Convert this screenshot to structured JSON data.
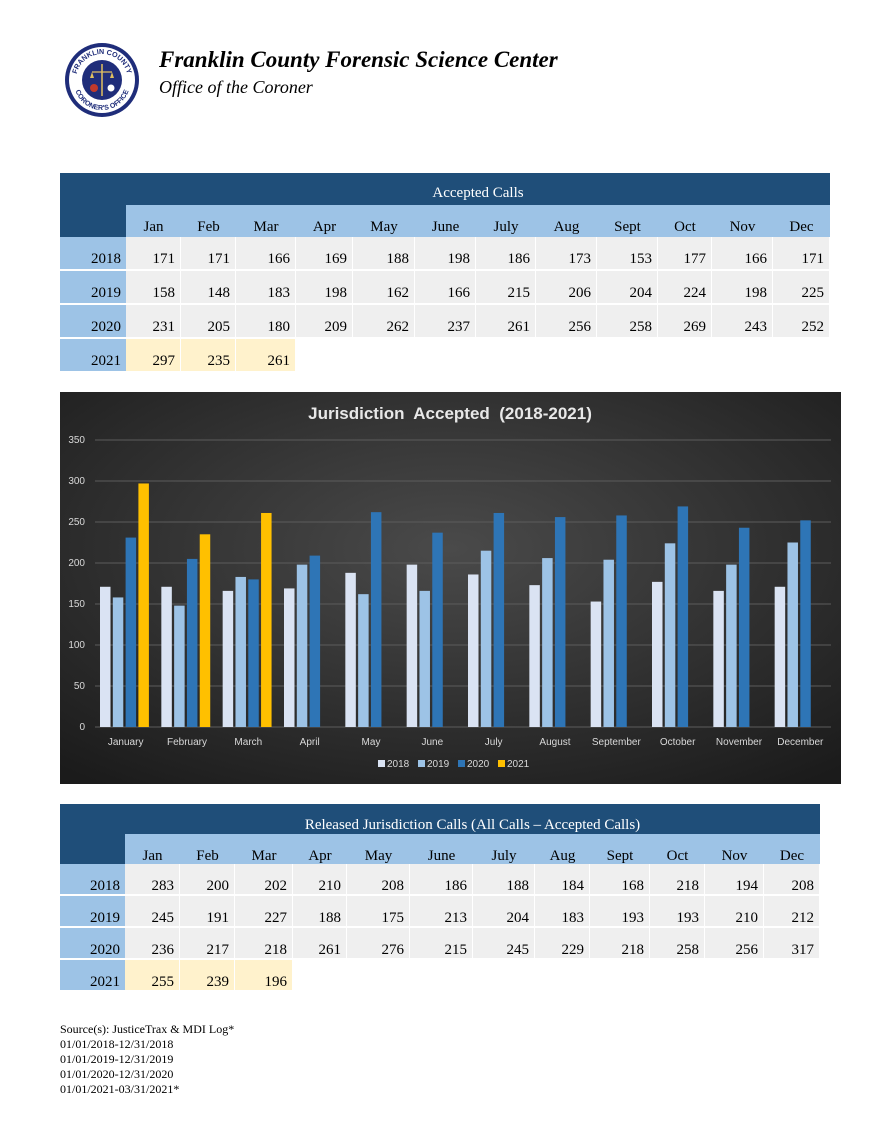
{
  "header": {
    "title": "Franklin County Forensic Science Center",
    "subtitle": "Office of the Coroner",
    "logo_text_top": "FRANKLIN COUNTY",
    "logo_text_bottom": "CORONER'S OFFICE"
  },
  "accepted_table": {
    "title": "Accepted Calls",
    "months": [
      "Jan",
      "Feb",
      "Mar",
      "Apr",
      "May",
      "June",
      "July",
      "Aug",
      "Sept",
      "Oct",
      "Nov",
      "Dec"
    ],
    "rows": [
      {
        "year": "2018",
        "values": [
          "171",
          "171",
          "166",
          "169",
          "188",
          "198",
          "186",
          "173",
          "153",
          "177",
          "166",
          "171"
        ]
      },
      {
        "year": "2019",
        "values": [
          "158",
          "148",
          "183",
          "198",
          "162",
          "166",
          "215",
          "206",
          "204",
          "224",
          "198",
          "225"
        ]
      },
      {
        "year": "2020",
        "values": [
          "231",
          "205",
          "180",
          "209",
          "262",
          "237",
          "261",
          "256",
          "258",
          "269",
          "243",
          "252"
        ]
      },
      {
        "year": "2021",
        "values": [
          "297",
          "235",
          "261"
        ]
      }
    ]
  },
  "chart_data": {
    "type": "bar",
    "title": "Jurisdiction  Accepted  (2018-2021)",
    "categories": [
      "January",
      "February",
      "March",
      "April",
      "May",
      "June",
      "July",
      "August",
      "September",
      "October",
      "November",
      "December"
    ],
    "series": [
      {
        "name": "2018",
        "color": "#dae3f3",
        "values": [
          171,
          171,
          166,
          169,
          188,
          198,
          186,
          173,
          153,
          177,
          166,
          171
        ]
      },
      {
        "name": "2019",
        "color": "#9dc3e6",
        "values": [
          158,
          148,
          183,
          198,
          162,
          166,
          215,
          206,
          204,
          224,
          198,
          225
        ]
      },
      {
        "name": "2020",
        "color": "#2e75b6",
        "values": [
          231,
          205,
          180,
          209,
          262,
          237,
          261,
          256,
          258,
          269,
          243,
          252
        ]
      },
      {
        "name": "2021",
        "color": "#ffc000",
        "values": [
          297,
          235,
          261,
          null,
          null,
          null,
          null,
          null,
          null,
          null,
          null,
          null
        ]
      }
    ],
    "yticks": [
      "0",
      "50",
      "100",
      "150",
      "200",
      "250",
      "300",
      "350"
    ],
    "ylim": [
      0,
      350
    ],
    "grid": true,
    "legend": "bottom",
    "background": "dark"
  },
  "released_table": {
    "title": "Released Jurisdiction Calls (All Calls – Accepted Calls)",
    "months": [
      "Jan",
      "Feb",
      "Mar",
      "Apr",
      "May",
      "June",
      "July",
      "Aug",
      "Sept",
      "Oct",
      "Nov",
      "Dec"
    ],
    "rows": [
      {
        "year": "2018",
        "values": [
          "283",
          "200",
          "202",
          "210",
          "208",
          "186",
          "188",
          "184",
          "168",
          "218",
          "194",
          "208"
        ]
      },
      {
        "year": "2019",
        "values": [
          "245",
          "191",
          "227",
          "188",
          "175",
          "213",
          "204",
          "183",
          "193",
          "193",
          "210",
          "212"
        ]
      },
      {
        "year": "2020",
        "values": [
          "236",
          "217",
          "218",
          "261",
          "276",
          "215",
          "245",
          "229",
          "218",
          "258",
          "256",
          "317"
        ]
      },
      {
        "year": "2021",
        "values": [
          "255",
          "239",
          "196"
        ]
      }
    ]
  },
  "footer": {
    "lines": [
      "Source(s):  JusticeTrax & MDI Log*",
      "01/01/2018-12/31/2018",
      "01/01/2019-12/31/2019",
      "01/01/2020-12/31/2020",
      "01/01/2021-03/31/2021*"
    ]
  },
  "colors": {
    "header_band": "#1f4e79",
    "header_cells": "#9dc3e6",
    "value_cells": "#efefef",
    "highlight_2021": "#fff2cc"
  }
}
